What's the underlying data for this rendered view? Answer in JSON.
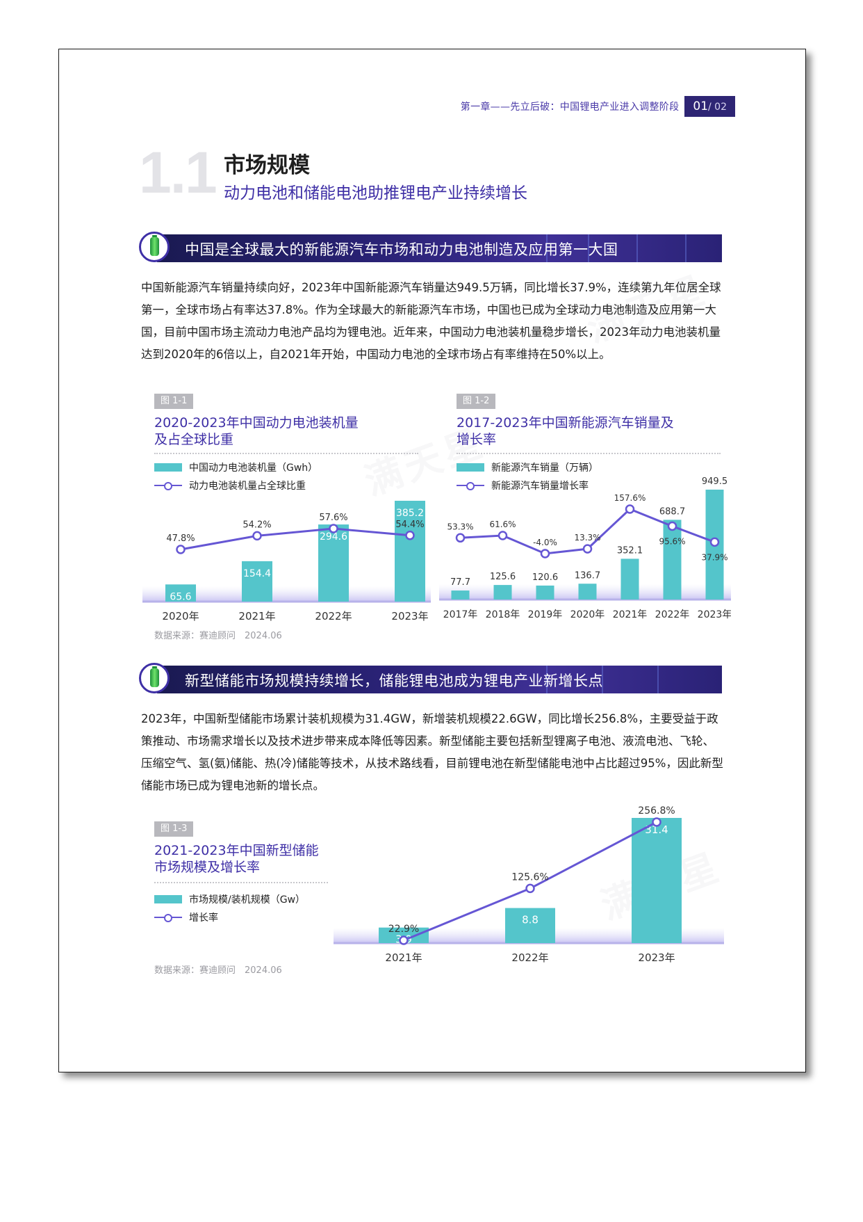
{
  "header": {
    "chapter": "第一章——先立后破：中国锂电产业进入调整阶段",
    "page": "01",
    "total": "/ 02"
  },
  "section": {
    "number": "1.1",
    "title": "市场规模",
    "subtitle": "动力电池和储能电池助推锂电产业持续增长"
  },
  "banner1": {
    "text": "中国是全球最大的新能源汽车市场和动力电池制造及应用第一大国"
  },
  "para1": "中国新能源汽车销量持续向好，2023年中国新能源汽车销量达949.5万辆，同比增长37.9%，连续第九年位居全球第一，全球市场占有率达37.8%。作为全球最大的新能源汽车市场，中国也已成为全球动力电池制造及应用第一大国，目前中国市场主流动力电池产品均为锂电池。近年来，中国动力电池装机量稳步增长，2023年动力电池装机量达到2020年的6倍以上，自2021年开始，中国动力电池的全球市场占有率维持在50%以上。",
  "banner2": {
    "text": "新型储能市场规模持续增长，储能锂电池成为锂电产业新增长点"
  },
  "para2": "2023年，中国新型储能市场累计装机规模为31.4GW，新增装机规模22.6GW，同比增长256.8%，主要受益于政策推动、市场需求增长以及技术进步带来成本降低等因素。新型储能主要包括新型锂离子电池、液流电池、飞轮、压缩空气、氢(氨)储能、热(冷)储能等技术，从技术路线看，目前锂电池在新型储能电池中占比超过95%，因此新型储能市场已成为锂电池新的增长点。",
  "figures": [
    {
      "tag": "图 1-1",
      "title": "2020-2023年中国动力电池装机量及占全球比重",
      "legend_bar": "中国动力电池装机量（Gwh）",
      "legend_line": "动力电池装机量占全球比重",
      "source": "数据来源：赛迪顾问　2024.06"
    },
    {
      "tag": "图 1-2",
      "title": "2017-2023年中国新能源汽车销量及增长率",
      "legend_bar": "新能源汽车销量（万辆）",
      "legend_line": "新能源汽车销量增长率"
    },
    {
      "tag": "图 1-3",
      "title": "2021-2023年中国新型储能市场规模及增长率",
      "legend_bar": "市场规模/装机规模（Gw）",
      "legend_line": "增长率",
      "source": "数据来源：赛迪顾问　2024.06"
    }
  ],
  "chart_data": [
    {
      "type": "bar",
      "categories": [
        "2020年",
        "2021年",
        "2022年",
        "2023年"
      ],
      "series": [
        {
          "name": "中国动力电池装机量（Gwh）",
          "kind": "bar",
          "values": [
            65.6,
            154.4,
            294.6,
            385.2
          ],
          "labels": [
            "65.6",
            "154.4",
            "294.6",
            "385.2"
          ]
        },
        {
          "name": "动力电池装机量占全球比重",
          "kind": "line",
          "values": [
            47.8,
            54.2,
            57.6,
            54.4
          ],
          "labels": [
            "47.8%",
            "54.2%",
            "57.6%",
            "54.4%"
          ]
        }
      ],
      "colors": {
        "bar": "#54c5cb",
        "line": "#6556d4"
      }
    },
    {
      "type": "bar",
      "categories": [
        "2017年",
        "2018年",
        "2019年",
        "2020年",
        "2021年",
        "2022年",
        "2023年"
      ],
      "series": [
        {
          "name": "新能源汽车销量（万辆）",
          "kind": "bar",
          "values": [
            77.7,
            125.6,
            120.6,
            136.7,
            352.1,
            688.7,
            949.5
          ],
          "labels": [
            "77.7",
            "125.6",
            "120.6",
            "136.7",
            "352.1",
            "688.7",
            "949.5"
          ]
        },
        {
          "name": "新能源汽车销量增长率",
          "kind": "line",
          "values": [
            53.3,
            61.6,
            -4.0,
            13.3,
            157.6,
            95.6,
            37.9
          ],
          "labels": [
            "53.3%",
            "61.6%",
            "-4.0%",
            "13.3%",
            "157.6%",
            "95.6%",
            "37.9%"
          ]
        }
      ],
      "colors": {
        "bar": "#54c5cb",
        "line": "#6556d4"
      }
    },
    {
      "type": "bar",
      "categories": [
        "2021年",
        "2022年",
        "2023年"
      ],
      "series": [
        {
          "name": "市场规模/装机规模（Gw）",
          "kind": "bar",
          "values": [
            3.9,
            8.8,
            31.4
          ],
          "labels": [
            "3.9",
            "8.8",
            "31.4"
          ]
        },
        {
          "name": "增长率",
          "kind": "line",
          "values": [
            22.9,
            125.6,
            256.8
          ],
          "labels": [
            "22.9%",
            "125.6%",
            "256.8%"
          ]
        }
      ],
      "colors": {
        "bar": "#54c5cb",
        "line": "#6556d4"
      }
    }
  ]
}
